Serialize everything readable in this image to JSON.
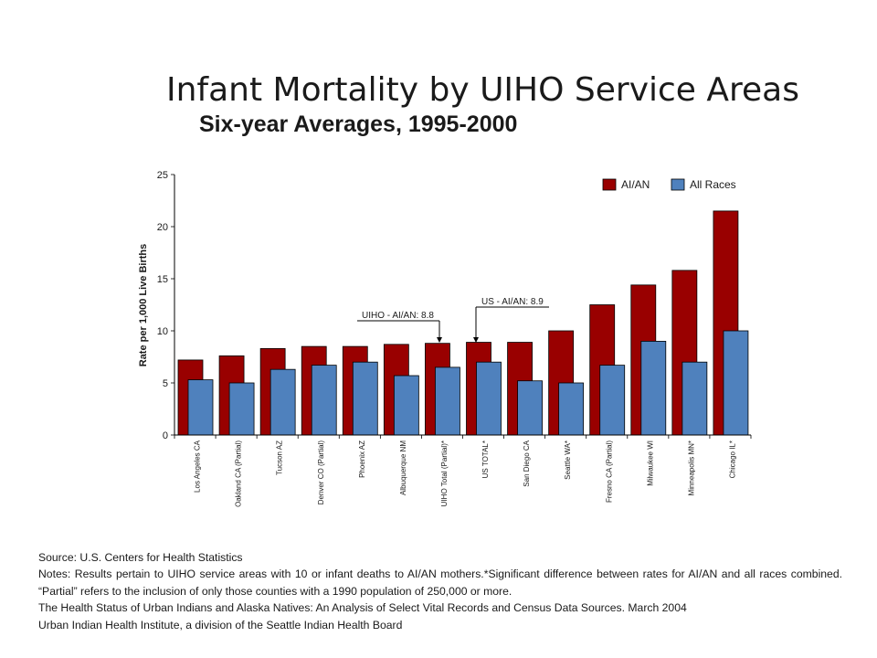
{
  "title": "Infant Mortality by UIHO Service Areas",
  "subtitle": "Six-year Averages, 1995-2000",
  "chart_data": {
    "type": "bar",
    "ylabel": "Rate per 1,000 Live Births",
    "xlabel": "",
    "ylim": [
      0,
      25
    ],
    "yticks": [
      0,
      5,
      10,
      15,
      20,
      25
    ],
    "grid": false,
    "legend_position": "top-right",
    "categories": [
      "Los Angeles CA",
      "Oakland CA (Partial)",
      "Tucson AZ",
      "Denver CO (Partial)",
      "Phoenix AZ",
      "Albuquerque NM",
      "UIHO Total (Partial)*",
      "US TOTAL*",
      "San Diego CA",
      "Seattle WA*",
      "Fresno CA (Partial)",
      "Milwaukee WI",
      "Minneapolis MN*",
      "Chicago IL*"
    ],
    "series": [
      {
        "name": "AI/AN",
        "color": "#990000",
        "values": [
          7.2,
          7.6,
          8.3,
          8.5,
          8.5,
          8.7,
          8.8,
          8.9,
          8.9,
          10.0,
          12.5,
          14.4,
          15.8,
          21.5
        ]
      },
      {
        "name": "All Races",
        "color": "#4f81bd",
        "values": [
          5.3,
          5.0,
          6.3,
          6.7,
          7.0,
          5.7,
          6.5,
          7.0,
          5.2,
          5.0,
          6.7,
          9.0,
          7.0,
          10.0
        ]
      }
    ],
    "annotations": [
      {
        "text": "UIHO - AI/AN: 8.8",
        "value": 8.8,
        "category": "UIHO Total (Partial)*"
      },
      {
        "text": "US - AI/AN: 8.9",
        "value": 8.9,
        "category": "US TOTAL*"
      }
    ]
  },
  "footer": {
    "source": "Source: U.S. Centers for Health Statistics",
    "notes": "Notes: Results pertain to UIHO service areas with 10 or infant deaths to AI/AN mothers.*Significant difference between rates for AI/AN and all races combined. “Partial” refers to the inclusion of only those counties with a 1990 population of 250,000 or more.",
    "citation": "The Health Status of Urban Indians and Alaska Natives: An Analysis of Select Vital Records and Census Data Sources. March 2004",
    "org": "Urban Indian Health Institute, a division of the Seattle Indian Health Board"
  }
}
